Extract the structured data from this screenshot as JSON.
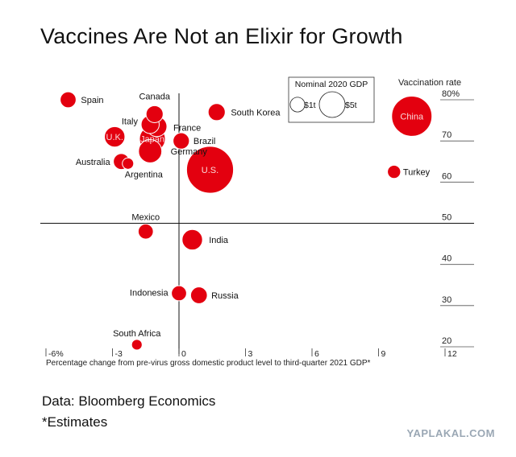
{
  "title": "Vaccines Are Not an Elixir for Growth",
  "source": "Data: Bloomberg Economics",
  "note": "*Estimates",
  "watermark": "YAPLAKAL.COM",
  "colors": {
    "bubble": "#e3000f",
    "bubble_stroke": "#ffffff",
    "axis": "#222222"
  },
  "chart_data": {
    "type": "scatter",
    "title": "Vaccines Are Not an Elixir for Growth",
    "xlabel": "Percentage change from pre-virus gross domestic product level to third-quarter 2021 GDP*",
    "ylabel": "Vaccination rate",
    "xlim": [
      -6.5,
      12
    ],
    "ylim": [
      20,
      82
    ],
    "x_ticks": [
      {
        "value": -6,
        "label": "-6%"
      },
      {
        "value": -3,
        "label": "-3"
      },
      {
        "value": 0,
        "label": "0"
      },
      {
        "value": 3,
        "label": "3"
      },
      {
        "value": 6,
        "label": "6"
      },
      {
        "value": 9,
        "label": "9"
      },
      {
        "value": 12,
        "label": "12"
      }
    ],
    "y_ticks": [
      {
        "value": 80,
        "label": "80%"
      },
      {
        "value": 70,
        "label": "70"
      },
      {
        "value": 60,
        "label": "60"
      },
      {
        "value": 50,
        "label": "50"
      },
      {
        "value": 40,
        "label": "40"
      },
      {
        "value": 30,
        "label": "30"
      },
      {
        "value": 20,
        "label": "20"
      }
    ],
    "size_legend": {
      "title": "Nominal 2020 GDP",
      "items": [
        {
          "label": "$1t",
          "gdp": 1
        },
        {
          "label": "$5t",
          "gdp": 5
        }
      ]
    },
    "points": [
      {
        "name": "Spain",
        "x": -5.0,
        "y": 80,
        "gdp": 1.3
      },
      {
        "name": "Canada",
        "x": -1.1,
        "y": 76.5,
        "gdp": 1.6
      },
      {
        "name": "Italy",
        "x": -1.3,
        "y": 74,
        "gdp": 1.9
      },
      {
        "name": "France",
        "x": -1.0,
        "y": 73.5,
        "gdp": 2.6
      },
      {
        "name": "South Korea",
        "x": 1.7,
        "y": 77,
        "gdp": 1.6
      },
      {
        "name": "China",
        "x": 10.5,
        "y": 76,
        "gdp": 14.7
      },
      {
        "name": "U.K.",
        "x": -2.9,
        "y": 71,
        "gdp": 2.7
      },
      {
        "name": "Japan",
        "x": -1.2,
        "y": 70.5,
        "gdp": 5.0
      },
      {
        "name": "Brazil",
        "x": 0.1,
        "y": 70,
        "gdp": 1.4
      },
      {
        "name": "Germany",
        "x": -1.3,
        "y": 67.5,
        "gdp": 3.8
      },
      {
        "name": "Australia",
        "x": -2.6,
        "y": 65,
        "gdp": 1.3
      },
      {
        "name": "Argentina",
        "x": -2.3,
        "y": 64.5,
        "gdp": 0.4
      },
      {
        "name": "U.S.",
        "x": 1.4,
        "y": 63,
        "gdp": 20.9
      },
      {
        "name": "Turkey",
        "x": 9.7,
        "y": 62.5,
        "gdp": 0.7
      },
      {
        "name": "Mexico",
        "x": -1.5,
        "y": 48,
        "gdp": 1.1
      },
      {
        "name": "India",
        "x": 0.6,
        "y": 46,
        "gdp": 2.7
      },
      {
        "name": "Indonesia",
        "x": 0.0,
        "y": 33,
        "gdp": 1.1
      },
      {
        "name": "Russia",
        "x": 0.9,
        "y": 32.5,
        "gdp": 1.5
      },
      {
        "name": "South Africa",
        "x": -1.9,
        "y": 20.5,
        "gdp": 0.3
      }
    ]
  }
}
